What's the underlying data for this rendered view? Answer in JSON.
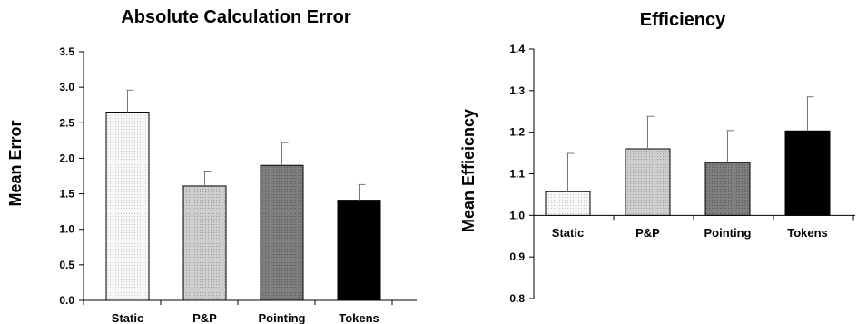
{
  "chart_data": [
    {
      "type": "bar",
      "title": "Absolute Calculation Error",
      "xlabel": "",
      "ylabel": "Mean Error",
      "categories": [
        "Static",
        "P&P",
        "Pointing",
        "Tokens"
      ],
      "values": [
        2.65,
        1.61,
        1.9,
        1.41
      ],
      "error": [
        0.31,
        0.21,
        0.32,
        0.22
      ],
      "ylim": [
        0,
        3.5
      ],
      "ticks": [
        "0.0",
        "0.5",
        "1.0",
        "1.5",
        "2.0",
        "2.5",
        "3.0",
        "3.5"
      ],
      "bar_colors": [
        "#f4f4f4",
        "#c8c8c8",
        "#7a7a7a",
        "#000000"
      ],
      "baseline": 0,
      "grid": false
    },
    {
      "type": "bar",
      "title": "Efficiency",
      "xlabel": "",
      "ylabel": "Mean Effieicncy",
      "categories": [
        "Static",
        "P&P",
        "Pointing",
        "Tokens"
      ],
      "values": [
        1.057,
        1.16,
        1.127,
        1.203
      ],
      "error": [
        0.092,
        0.078,
        0.077,
        0.082
      ],
      "ylim": [
        0.8,
        1.4
      ],
      "ticks": [
        "0.8",
        "0.9",
        "1.0",
        "1.1",
        "1.2",
        "1.3",
        "1.4"
      ],
      "bar_colors": [
        "#f4f4f4",
        "#c8c8c8",
        "#7a7a7a",
        "#000000"
      ],
      "baseline": 1.0,
      "grid": false
    }
  ]
}
